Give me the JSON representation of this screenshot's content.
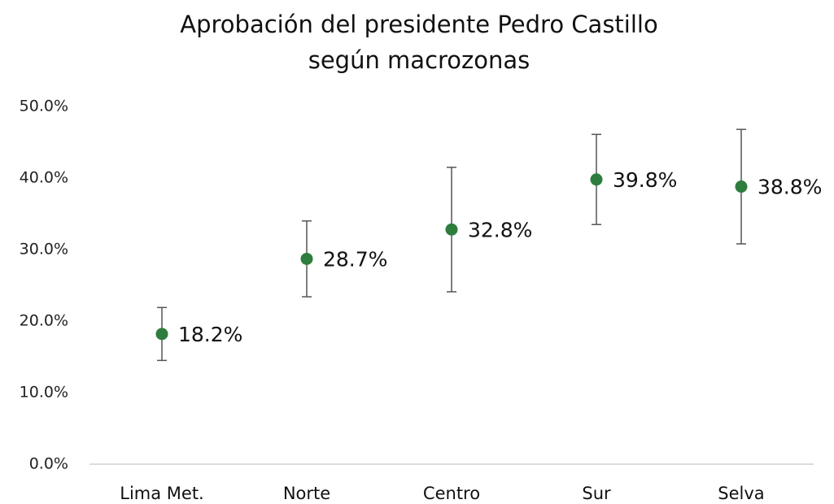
{
  "chart_data": {
    "type": "scatter",
    "title": [
      "Aprobación del presidente Pedro Castillo",
      "según macrozonas"
    ],
    "categories": [
      "Lima Met.",
      "Norte",
      "Centro",
      "Sur",
      "Selva"
    ],
    "values": [
      18.2,
      28.7,
      32.8,
      39.8,
      38.8
    ],
    "value_labels": [
      "18.2%",
      "28.7%",
      "32.8%",
      "39.8%",
      "38.8%"
    ],
    "errors": [
      3.7,
      5.3,
      8.7,
      6.3,
      8.0
    ],
    "color": "#2e7d3e",
    "ylim": [
      0,
      50
    ],
    "yticks": [
      {
        "value": 0,
        "label": "0.0%"
      },
      {
        "value": 10,
        "label": "10.0%"
      },
      {
        "value": 20,
        "label": "20.0%"
      },
      {
        "value": 30,
        "label": "30.0%"
      },
      {
        "value": 40,
        "label": "40.0%"
      },
      {
        "value": 50,
        "label": "50.0%"
      }
    ],
    "grid": false
  }
}
